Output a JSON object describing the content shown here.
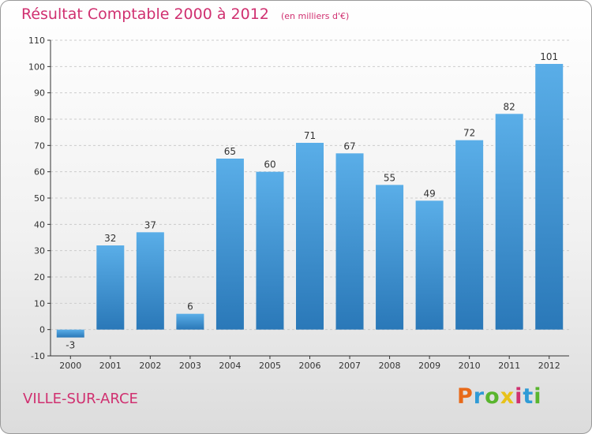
{
  "title": "Résultat Comptable 2000 à 2012",
  "subtitle": "(en milliers d'€)",
  "location": "VILLE-SUR-ARCE",
  "brand": {
    "letters": [
      "P",
      "r",
      "o",
      "x",
      "i",
      "t",
      "i"
    ],
    "colors": [
      "#e86a1a",
      "#2f9bd6",
      "#59b52e",
      "#e8c21a",
      "#d03070",
      "#2f9bd6",
      "#59b52e"
    ]
  },
  "colors": {
    "title": "#d03070",
    "bar_top": "#5aaee8",
    "bar_bottom": "#2a78b8",
    "grid": "#cccccc",
    "axis": "#333333"
  },
  "chart_data": {
    "type": "bar",
    "title": "Résultat Comptable 2000 à 2012",
    "subtitle": "(en milliers d'€)",
    "xlabel": "",
    "ylabel": "",
    "categories": [
      "2000",
      "2001",
      "2002",
      "2003",
      "2004",
      "2005",
      "2006",
      "2007",
      "2008",
      "2009",
      "2010",
      "2011",
      "2012"
    ],
    "values": [
      -3,
      32,
      37,
      6,
      65,
      60,
      71,
      67,
      55,
      49,
      72,
      82,
      101
    ],
    "ylim": [
      -10,
      110
    ],
    "yticks": [
      -10,
      0,
      10,
      20,
      30,
      40,
      50,
      60,
      70,
      80,
      90,
      100,
      110
    ],
    "grid": "horizontal-dashed",
    "legend": "none"
  }
}
